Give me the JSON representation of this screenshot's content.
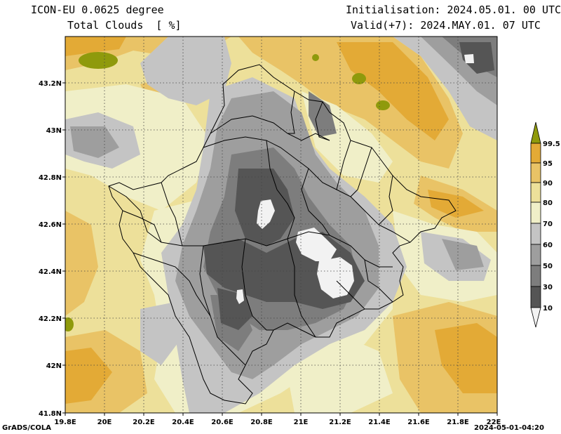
{
  "header": {
    "model": "ICON-EU 0.0625 degree",
    "field": "Total Clouds  [ %]",
    "init": "Initialisation: 2024.05.01. 00 UTC",
    "valid": "Valid(+7): 2024.MAY.01. 07 UTC"
  },
  "map": {
    "lon_labels": [
      "19.8E",
      "20E",
      "20.2E",
      "20.4E",
      "20.6E",
      "20.8E",
      "21E",
      "21.2E",
      "21.4E",
      "21.6E",
      "21.8E",
      "22E"
    ],
    "lat_labels": [
      "43.2N",
      "43N",
      "42.8N",
      "42.6N",
      "42.4N",
      "42.2N",
      "42N",
      "41.8N"
    ]
  },
  "colorbar": {
    "labels": [
      "99.5",
      "95",
      "90",
      "80",
      "70",
      "60",
      "50",
      "30",
      "10"
    ],
    "colors": {
      "lt10": "#f2f2f2",
      "10_30": "#555555",
      "30_50": "#7d7d7d",
      "50_60": "#9e9e9e",
      "60_70": "#c4c4c4",
      "70_80": "#f0efc8",
      "80_90": "#ede09a",
      "90_95": "#e9c366",
      "95_99.5": "#e3aa36",
      "gt99.5": "#8f9a0c"
    }
  },
  "footer": {
    "left": "GrADS/COLA",
    "right": "2024-05-01-04:20"
  }
}
